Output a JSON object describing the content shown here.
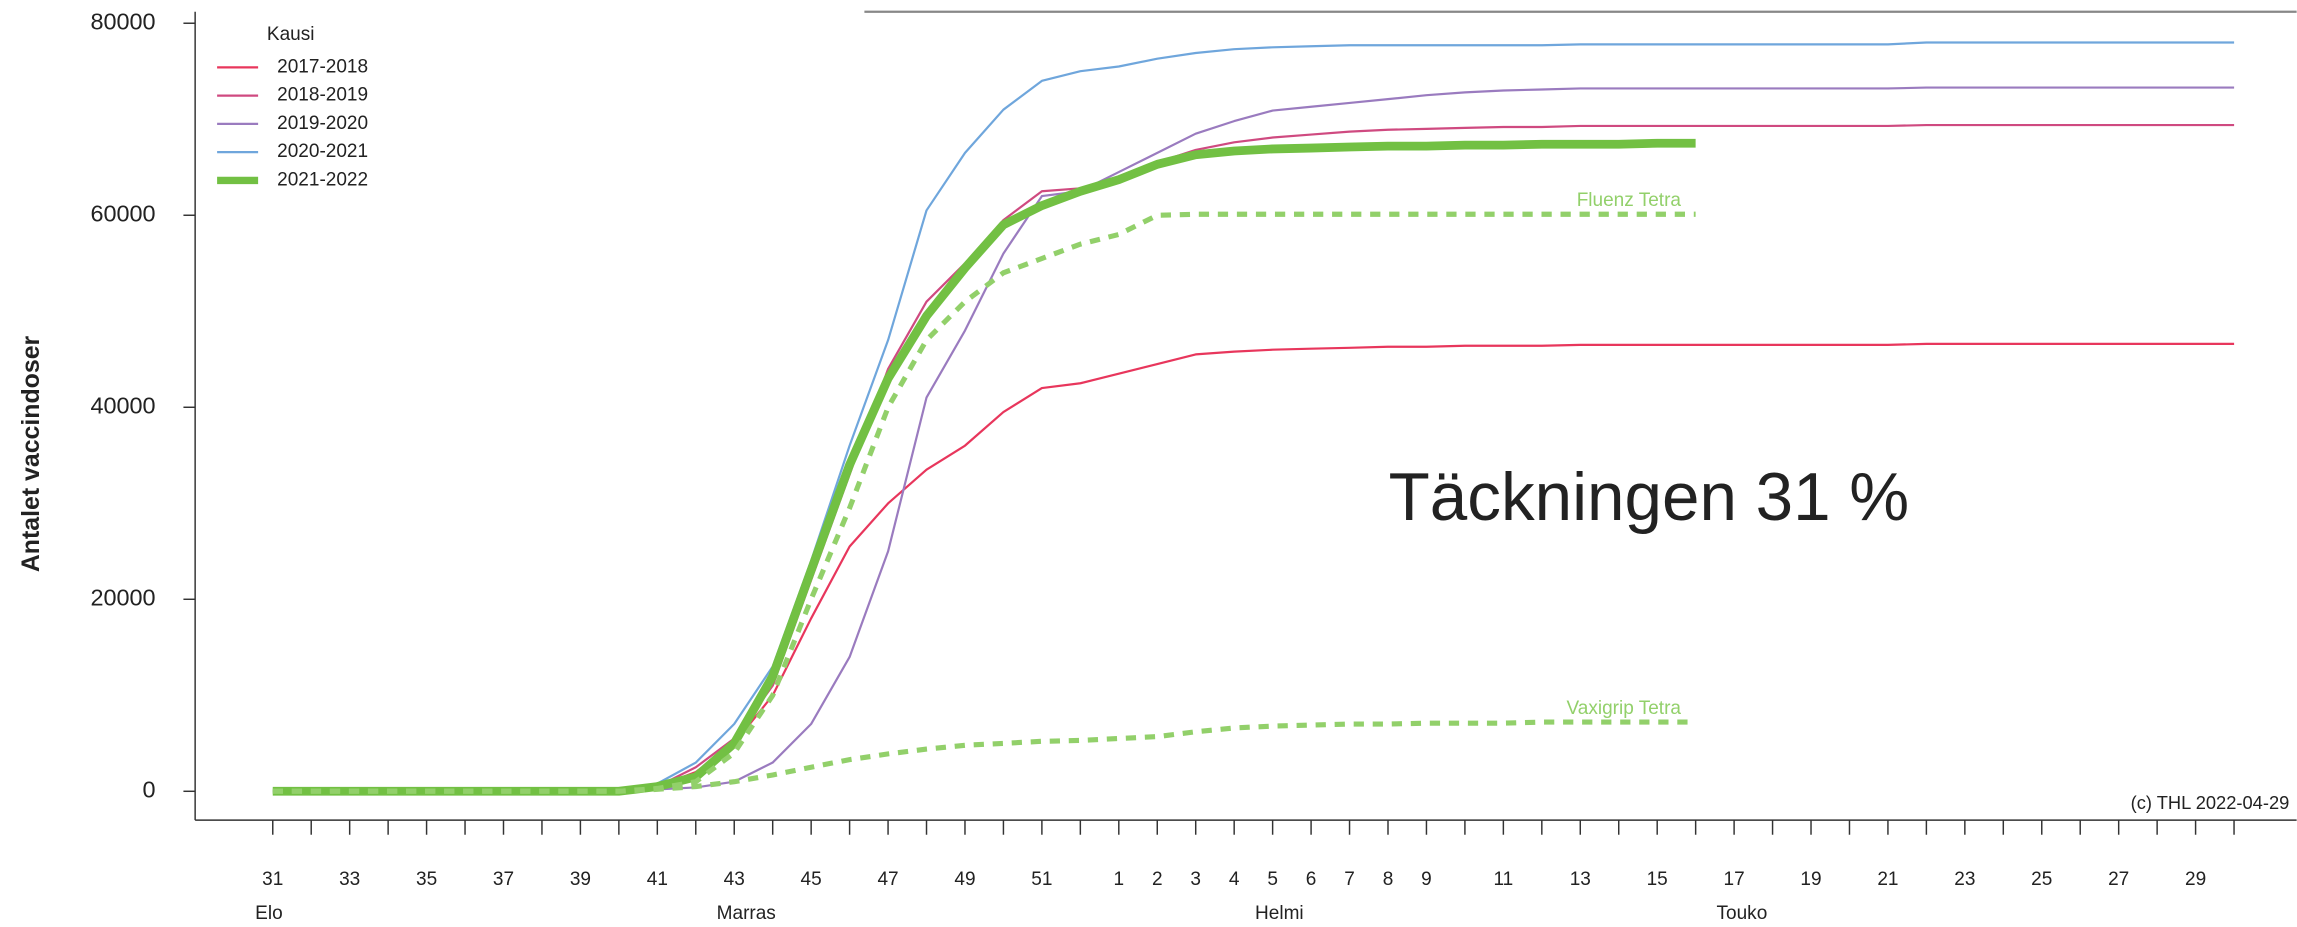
{
  "chart_data": {
    "type": "line",
    "ylabel": "Antalet vaccindoser",
    "legend_title": "Kausi",
    "annotation": "Täckningen 31 %",
    "credit": "(c) THL 2022-04-29",
    "legend": "upper left",
    "ylim": [
      -3000,
      81200
    ],
    "yticks": [
      0,
      20000,
      40000,
      60000,
      80000
    ],
    "categories": [
      "31",
      null,
      "33",
      null,
      "35",
      null,
      "37",
      null,
      "39",
      null,
      "41",
      null,
      "43",
      null,
      "45",
      null,
      "47",
      null,
      "49",
      null,
      "51",
      null,
      "1",
      "2",
      "3",
      "4",
      "5",
      "6",
      "7",
      "8",
      "9",
      null,
      "11",
      null,
      "13",
      null,
      "15",
      null,
      "17",
      null,
      "19",
      null,
      "21",
      null,
      "23",
      null,
      "25",
      null,
      "27",
      null,
      "29",
      null
    ],
    "month_labels": [
      {
        "label": "Elo",
        "week": "31"
      },
      {
        "label": "Marras",
        "week": "43"
      },
      {
        "label": "Helmi",
        "week": "5"
      },
      {
        "label": "Touko",
        "week": "17"
      }
    ],
    "series": [
      {
        "name": "2017-2018",
        "color": "#e8365c",
        "width": 1.5,
        "values": [
          0,
          0,
          0,
          0,
          0,
          0,
          0,
          0,
          0,
          0,
          500,
          2000,
          5000,
          10000,
          18000,
          25500,
          30000,
          33500,
          36000,
          39500,
          42000,
          42500,
          43500,
          44500,
          45500,
          45800,
          46000,
          46100,
          46200,
          46300,
          46300,
          46400,
          46400,
          46400,
          46500,
          46500,
          46500,
          46500,
          46500,
          46500,
          46500,
          46500,
          46500,
          46600,
          46600,
          46600,
          46600,
          46600,
          46600,
          46600,
          46600,
          46600
        ]
      },
      {
        "name": "2018-2019",
        "color": "#cf4a80",
        "width": 1.5,
        "values": [
          0,
          0,
          0,
          0,
          0,
          0,
          0,
          0,
          0,
          0,
          500,
          2500,
          5500,
          11000,
          22000,
          33000,
          44000,
          51000,
          55000,
          59500,
          62500,
          62800,
          64000,
          65500,
          66800,
          67600,
          68100,
          68400,
          68700,
          68900,
          69000,
          69100,
          69200,
          69200,
          69300,
          69300,
          69300,
          69300,
          69300,
          69300,
          69300,
          69300,
          69300,
          69400,
          69400,
          69400,
          69400,
          69400,
          69400,
          69400,
          69400,
          69400
        ]
      },
      {
        "name": "2019-2020",
        "color": "#9a7bbf",
        "width": 1.5,
        "values": [
          0,
          0,
          0,
          0,
          0,
          0,
          0,
          0,
          0,
          0,
          200,
          400,
          1000,
          3000,
          7000,
          14000,
          25000,
          41000,
          48000,
          56000,
          62000,
          62500,
          64500,
          66500,
          68500,
          69800,
          70900,
          71300,
          71700,
          72100,
          72500,
          72800,
          73000,
          73100,
          73200,
          73200,
          73200,
          73200,
          73200,
          73200,
          73200,
          73200,
          73200,
          73300,
          73300,
          73300,
          73300,
          73300,
          73300,
          73300,
          73300,
          73300
        ]
      },
      {
        "name": "2020-2021",
        "color": "#6fa6dc",
        "width": 1.5,
        "values": [
          0,
          0,
          0,
          0,
          0,
          0,
          0,
          0,
          0,
          0,
          800,
          3000,
          7000,
          13000,
          24000,
          36000,
          47000,
          60500,
          66500,
          71000,
          74000,
          75000,
          75500,
          76300,
          76900,
          77300,
          77500,
          77600,
          77700,
          77700,
          77700,
          77700,
          77700,
          77700,
          77800,
          77800,
          77800,
          77800,
          77800,
          77800,
          77800,
          77800,
          77800,
          78000,
          78000,
          78000,
          78000,
          78000,
          78000,
          78000,
          78000,
          78000
        ]
      },
      {
        "name": "2021-2022",
        "color": "#72c043",
        "width": 6,
        "values": [
          0,
          0,
          0,
          0,
          0,
          0,
          0,
          0,
          0,
          0,
          500,
          1500,
          5000,
          12000,
          23000,
          34000,
          43000,
          49500,
          54500,
          59000,
          61000,
          62500,
          63700,
          65300,
          66300,
          66700,
          66900,
          67000,
          67100,
          67200,
          67200,
          67300,
          67300,
          67400,
          67400,
          67400,
          67500,
          67500,
          null,
          null,
          null,
          null,
          null,
          null,
          null,
          null,
          null,
          null,
          null,
          null,
          null,
          null
        ]
      },
      {
        "name": "Fluenz Tetra",
        "color": "#92d06a",
        "width": 3.5,
        "dashed": true,
        "in_legend": false,
        "values": [
          0,
          0,
          0,
          0,
          0,
          0,
          0,
          0,
          0,
          0,
          300,
          1000,
          4000,
          10000,
          20000,
          29500,
          40000,
          47000,
          51000,
          54000,
          55500,
          57000,
          58000,
          60000,
          60100,
          60100,
          60100,
          60100,
          60100,
          60100,
          60100,
          60100,
          60100,
          60100,
          60100,
          60100,
          60100,
          60100,
          null,
          null,
          null,
          null,
          null,
          null,
          null,
          null,
          null,
          null,
          null,
          null,
          null,
          null
        ]
      },
      {
        "name": "Vaxigrip Tetra",
        "color": "#92d06a",
        "width": 3.5,
        "dashed": true,
        "in_legend": false,
        "values": [
          0,
          0,
          0,
          0,
          0,
          0,
          0,
          0,
          0,
          0,
          200,
          500,
          1000,
          1700,
          2500,
          3300,
          3900,
          4400,
          4800,
          5000,
          5200,
          5300,
          5500,
          5700,
          6200,
          6600,
          6800,
          6900,
          7000,
          7000,
          7100,
          7100,
          7100,
          7200,
          7200,
          7200,
          7200,
          7200,
          null,
          null,
          null,
          null,
          null,
          null,
          null,
          null,
          null,
          null,
          null,
          null,
          null,
          null
        ]
      }
    ]
  }
}
